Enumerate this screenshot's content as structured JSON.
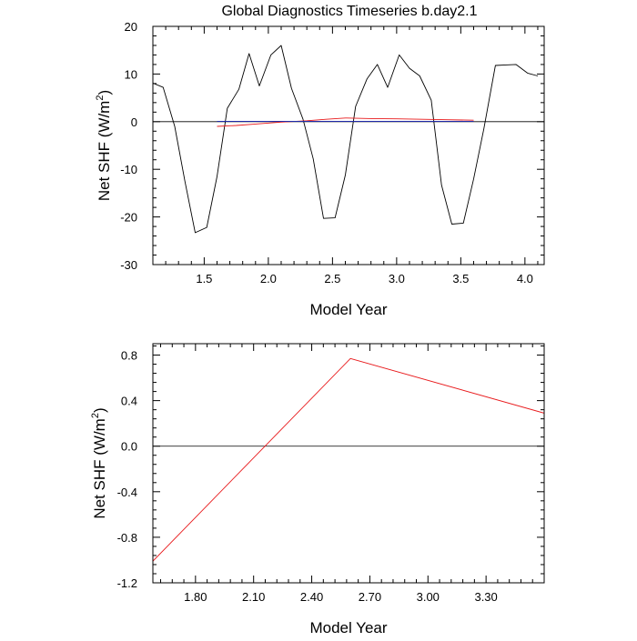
{
  "title": "Global Diagnostics Timeseries b.day2.1",
  "chart_data": [
    {
      "type": "line",
      "title": "Global Diagnostics Timeseries b.day2.1",
      "xlabel": "Model Year",
      "ylabel_main": "Net SHF (W/m",
      "ylabel_sup": "2",
      "ylabel_end": ")",
      "xlim": [
        1.1,
        4.15
      ],
      "ylim": [
        -30,
        20
      ],
      "xticks": [
        1.5,
        2.0,
        2.5,
        3.0,
        3.5,
        4.0
      ],
      "xtick_labels": [
        "1.5",
        "2.0",
        "2.5",
        "3.0",
        "3.5",
        "4.0"
      ],
      "yticks": [
        -30,
        -20,
        -10,
        0,
        10,
        20
      ],
      "ytick_labels": [
        "-30",
        "-20",
        "-10",
        "0",
        "10",
        "20"
      ],
      "reference_line": 0,
      "series": [
        {
          "color": "#000000",
          "x": [
            1.1,
            1.18,
            1.27,
            1.35,
            1.43,
            1.52,
            1.6,
            1.68,
            1.77,
            1.85,
            1.93,
            2.02,
            2.1,
            2.18,
            2.27,
            2.35,
            2.43,
            2.52,
            2.6,
            2.68,
            2.77,
            2.85,
            2.93,
            3.02,
            3.1,
            3.18,
            3.27,
            3.35,
            3.43,
            3.52,
            3.6,
            3.68,
            3.77,
            3.85,
            3.93,
            4.02,
            4.1
          ],
          "y": [
            8.1,
            7.2,
            -1.0,
            -12.5,
            -23.3,
            -22.2,
            -11.5,
            2.8,
            6.8,
            14.3,
            7.5,
            14.0,
            16.0,
            7.0,
            0.5,
            -7.8,
            -20.3,
            -20.2,
            -11.2,
            3.2,
            9.0,
            12.0,
            7.2,
            14.0,
            11.2,
            9.6,
            4.5,
            -13.3,
            -21.5,
            -21.3,
            -12.0,
            -1.5,
            11.8,
            11.9,
            12.0,
            10.2,
            9.6
          ]
        },
        {
          "color": "#e8191b",
          "x": [
            1.6,
            1.75,
            1.9,
            2.1,
            2.3,
            2.45,
            2.6,
            2.8,
            3.0,
            3.2,
            3.4,
            3.6
          ],
          "y": [
            -1.0,
            -0.8,
            -0.5,
            -0.1,
            0.2,
            0.5,
            0.77,
            0.65,
            0.6,
            0.5,
            0.4,
            0.3
          ]
        },
        {
          "color": "#1f2aa8",
          "x": [
            1.6,
            3.6
          ],
          "y": [
            0.05,
            0.05
          ]
        }
      ]
    },
    {
      "type": "line",
      "xlabel": "Model Year",
      "ylabel_main": "Net SHF (W/m",
      "ylabel_sup": "2",
      "ylabel_end": ")",
      "xlim": [
        1.58,
        3.6
      ],
      "ylim": [
        -1.2,
        0.9
      ],
      "xticks": [
        1.8,
        2.1,
        2.4,
        2.7,
        3.0,
        3.3
      ],
      "xtick_labels": [
        "1.80",
        "2.10",
        "2.40",
        "2.70",
        "3.00",
        "3.30"
      ],
      "yticks": [
        -1.2,
        -0.8,
        -0.4,
        0.0,
        0.4,
        0.8
      ],
      "ytick_labels": [
        "-1.2",
        "-0.8",
        "-0.4",
        "0.0",
        "0.4",
        "0.8"
      ],
      "reference_line": 0,
      "series": [
        {
          "color": "#e8191b",
          "x": [
            1.58,
            2.6,
            3.6
          ],
          "y": [
            -1.01,
            0.77,
            0.29
          ]
        }
      ]
    }
  ]
}
